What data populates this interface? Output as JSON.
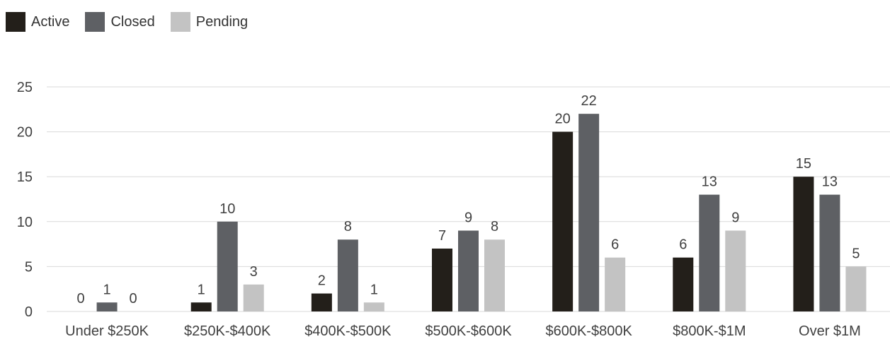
{
  "chart_data": {
    "type": "bar",
    "categories": [
      "Under $250K",
      "$250K-$400K",
      "$400K-$500K",
      "$500K-$600K",
      "$600K-$800K",
      "$800K-$1M",
      "Over $1M"
    ],
    "series": [
      {
        "name": "Active",
        "color": "#231f1a",
        "values": [
          0,
          1,
          2,
          7,
          20,
          6,
          15
        ]
      },
      {
        "name": "Closed",
        "color": "#5e6064",
        "values": [
          1,
          10,
          8,
          9,
          22,
          13,
          13
        ]
      },
      {
        "name": "Pending",
        "color": "#c3c3c3",
        "values": [
          0,
          3,
          1,
          8,
          6,
          9,
          5
        ]
      }
    ],
    "yticks": [
      0,
      5,
      10,
      15,
      20,
      25
    ],
    "ylim": [
      0,
      25
    ],
    "grid": true,
    "legend_position": "top-left",
    "data_labels": true,
    "gridline_color": "#d9d9d9"
  }
}
